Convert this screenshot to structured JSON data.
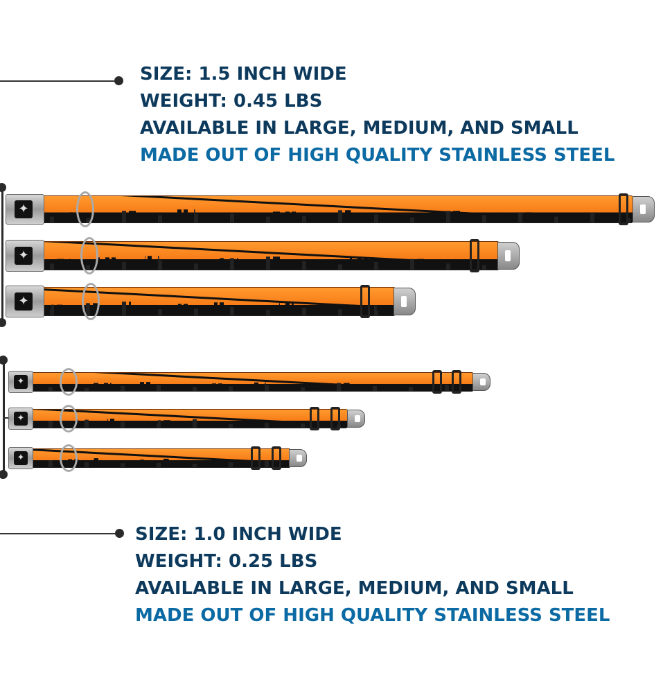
{
  "large_spec": {
    "size": "SIZE: 1.5 INCH WIDE",
    "weight": "WEIGHT: 0.45 LBS",
    "availability": "AVAILABLE IN LARGE, MEDIUM, AND SMALL",
    "material": "MADE OUT OF HIGH QUALITY STAINLESS STEEL"
  },
  "small_spec": {
    "size": "SIZE: 1.0 INCH WIDE",
    "weight": "WEIGHT: 0.25 LBS",
    "availability": "AVAILABLE IN LARGE, MEDIUM, AND SMALL",
    "material": "MADE OUT OF HIGH QUALITY STAINLESS STEEL"
  },
  "colors": {
    "text_dark": "#0d3a5c",
    "text_blue": "#0b6aa3",
    "strap_orange": "#f26a0a"
  },
  "icons": {
    "buckle_logo": "bone-icon"
  }
}
